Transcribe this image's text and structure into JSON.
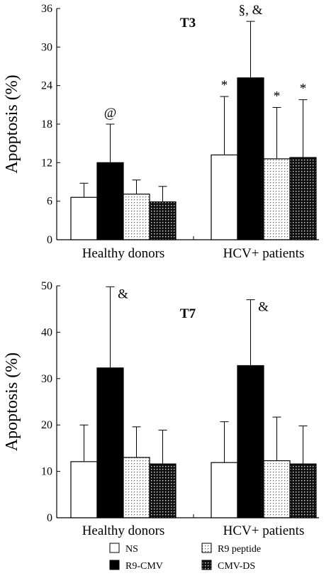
{
  "chart_data": [
    {
      "type": "bar",
      "title": "T3",
      "ylabel": "Apoptosis (%)",
      "ylim": [
        0,
        36
      ],
      "yticks": [
        0,
        6,
        12,
        18,
        24,
        30,
        36
      ],
      "categories": [
        "Healthy donors",
        "HCV+ patients"
      ],
      "series": [
        {
          "name": "NS",
          "values": [
            6.6,
            13.2
          ],
          "error": [
            2.2,
            9.1
          ],
          "annotations": [
            "",
            "*"
          ]
        },
        {
          "name": "R9-CMV",
          "values": [
            12.0,
            25.2
          ],
          "error": [
            6.0,
            8.8
          ],
          "annotations": [
            "@",
            "§, &"
          ]
        },
        {
          "name": "R9 peptide",
          "values": [
            7.1,
            12.6
          ],
          "error": [
            2.2,
            8.0
          ],
          "annotations": [
            "",
            "*"
          ]
        },
        {
          "name": "CMV-DS",
          "values": [
            5.9,
            12.8
          ],
          "error": [
            2.4,
            9.0
          ],
          "annotations": [
            "",
            "*"
          ]
        }
      ]
    },
    {
      "type": "bar",
      "title": "T7",
      "ylabel": "Apoptosis (%)",
      "ylim": [
        0,
        50
      ],
      "yticks": [
        0,
        10,
        20,
        30,
        40,
        50
      ],
      "categories": [
        "Healthy donors",
        "HCV+ patients"
      ],
      "series": [
        {
          "name": "NS",
          "values": [
            12.1,
            11.9
          ],
          "error": [
            7.9,
            8.8
          ],
          "annotations": [
            "",
            ""
          ]
        },
        {
          "name": "R9-CMV",
          "values": [
            32.3,
            32.8
          ],
          "error": [
            17.5,
            14.2
          ],
          "annotations": [
            "&",
            "&"
          ]
        },
        {
          "name": "R9 peptide",
          "values": [
            13.0,
            12.3
          ],
          "error": [
            6.6,
            9.4
          ],
          "annotations": [
            "",
            ""
          ]
        },
        {
          "name": "CMV-DS",
          "values": [
            11.6,
            11.6
          ],
          "error": [
            7.3,
            8.2
          ],
          "annotations": [
            "",
            ""
          ]
        }
      ]
    }
  ],
  "legend": [
    {
      "label": "NS",
      "fill": "white"
    },
    {
      "label": "R9-CMV",
      "fill": "black"
    },
    {
      "label": "R9 peptide",
      "fill": "dots"
    },
    {
      "label": "CMV-DS",
      "fill": "dense-dots"
    }
  ]
}
